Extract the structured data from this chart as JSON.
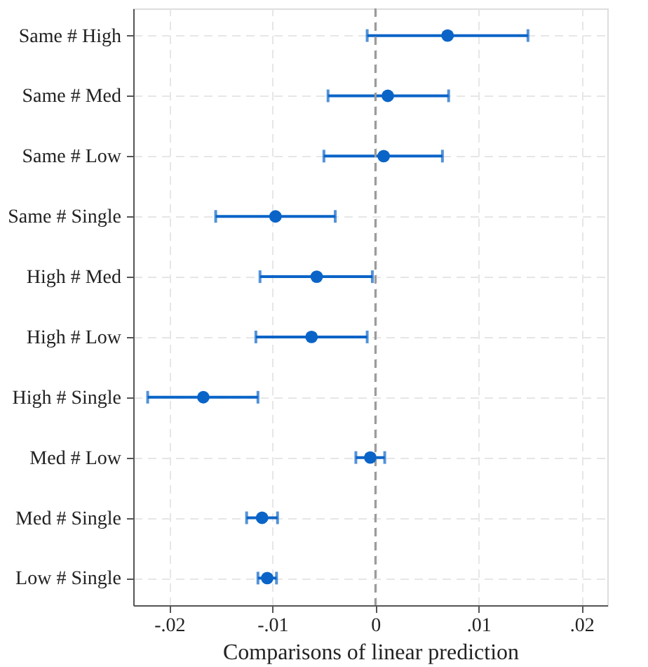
{
  "chart_data": {
    "type": "scatter",
    "orientation": "horizontal",
    "xlabel": "Comparisons of linear prediction",
    "categories": [
      "Same # High",
      "Same # Med",
      "Same # Low",
      "Same # Single",
      "High # Med",
      "High # Low",
      "High # Single",
      "Med # Low",
      "Med # Single",
      "Low # Single"
    ],
    "series": [
      {
        "color": "#0a64c8",
        "values": [
          0.007,
          0.0012,
          0.0008,
          -0.0097,
          -0.0057,
          -0.0062,
          -0.0167,
          -0.0005,
          -0.011,
          -0.0105
        ],
        "errors": [
          [
            -0.0008,
            0.0148
          ],
          [
            -0.0046,
            0.0071
          ],
          [
            -0.005,
            0.0065
          ],
          [
            -0.0155,
            -0.0039
          ],
          [
            -0.0112,
            -0.0003
          ],
          [
            -0.0116,
            -0.0008
          ],
          [
            -0.0221,
            -0.0114
          ],
          [
            -0.0019,
            0.0009
          ],
          [
            -0.0125,
            -0.0095
          ],
          [
            -0.0114,
            -0.0096
          ]
        ]
      }
    ],
    "xlim": [
      -0.0235,
      0.0225
    ],
    "xticks": [
      {
        "value": -0.02,
        "label": "-.02"
      },
      {
        "value": -0.01,
        "label": "-.01"
      },
      0,
      {
        "value": 0.01,
        "label": ".01"
      },
      {
        "value": 0.02,
        "label": ".02"
      }
    ],
    "ref_lines": [
      {
        "axis": "x",
        "value": 0,
        "color": "#999999",
        "line_style": "dashed"
      }
    ],
    "grid": true,
    "marker": "circle"
  }
}
